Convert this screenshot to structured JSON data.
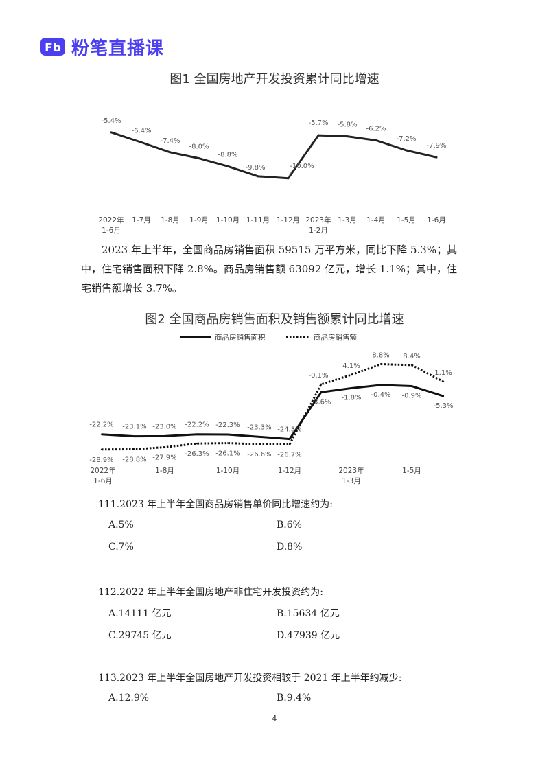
{
  "brand": {
    "mark": "Fb",
    "name": "粉笔直播课",
    "color": "#4b3ff0"
  },
  "chart1": {
    "title": "图1  全国房地产开发投资累计同比增速"
  },
  "paragraph": "2023 年上半年，全国商品房销售面积 59515 万平方米，同比下降 5.3%；其中，住宅销售面积下降 2.8%。商品房销售额 63092 亿元，增长 1.1%；其中，住宅销售额增长 3.7%。",
  "chart2": {
    "title": "图2  全国商品房销售面积及销售额累计同比增速"
  },
  "chart_data": [
    {
      "type": "line",
      "title": "图1  全国房地产开发投资累计同比增速",
      "categories": [
        "2022年 1-6月",
        "1-7月",
        "1-8月",
        "1-9月",
        "1-10月",
        "1-11月",
        "1-12月",
        "2023年 1-2月",
        "1-3月",
        "1-4月",
        "1-5月",
        "1-6月"
      ],
      "series": [
        {
          "values": [
            -5.4,
            -6.4,
            -7.4,
            -8.0,
            -8.8,
            -9.8,
            -10.0,
            -5.7,
            -5.8,
            -6.2,
            -7.2,
            -7.9
          ],
          "labels": [
            "-5.4%",
            "-6.4%",
            "-7.4%",
            "-8.0%",
            "-8.8%",
            "-9.8%",
            "-10.0%",
            "-5.7%",
            "-5.8%",
            "-6.2%",
            "-7.2%",
            "-7.9%"
          ]
        }
      ],
      "ylim": [
        -10.5,
        -5
      ],
      "grid": false,
      "line_color": "#222222"
    },
    {
      "type": "line",
      "title": "图2  全国商品房销售面积及销售额累计同比增速",
      "x_tick_labels": [
        "2022年 1-6月",
        "1-8月",
        "1-10月",
        "1-12月",
        "2023年 1-3月",
        "1-5月"
      ],
      "legend": [
        "商品房销售面积",
        "商品房销售额"
      ],
      "legend_position": "top-center",
      "series": [
        {
          "name": "商品房销售面积",
          "style": "solid",
          "values": [
            -22.2,
            -23.1,
            -23.0,
            -22.2,
            -22.3,
            -23.3,
            -24.3,
            -3.6,
            -1.8,
            -0.4,
            -0.9,
            -5.3
          ],
          "labels": [
            "-22.2%",
            "-23.1%",
            "-23.0%",
            "-22.2%",
            "-22.3%",
            "-23.3%",
            "-24.3%",
            "-3.6%",
            "-1.8%",
            "-0.4%",
            "-0.9%",
            "-5.3%"
          ]
        },
        {
          "name": "商品房销售额",
          "style": "dotted",
          "values": [
            -28.9,
            -28.8,
            -27.9,
            -26.3,
            -26.1,
            -26.6,
            -26.7,
            -0.1,
            4.1,
            8.8,
            8.4,
            1.1
          ],
          "labels": [
            "-28.9%",
            "-28.8%",
            "-27.9%",
            "-26.3%",
            "-26.1%",
            "-26.6%",
            "-26.7%",
            "-0.1%",
            "4.1%",
            "8.8%",
            "8.4%",
            "1.1%"
          ]
        }
      ],
      "ylim": [
        -32,
        12
      ],
      "grid": false
    }
  ],
  "questions": [
    {
      "stem": "111.2023 年上半年全国商品房销售单价同比增速约为:",
      "options": [
        "A.5%",
        "B.6%",
        "C.7%",
        "D.8%"
      ]
    },
    {
      "stem": "112.2022 年上半年全国房地产非住宅开发投资约为:",
      "options": [
        "A.14111 亿元",
        "B.15634 亿元",
        "C.29745 亿元",
        "D.47939 亿元"
      ]
    },
    {
      "stem": "113.2023 年上半年全国房地产开发投资相较于 2021 年上半年约减少:",
      "options": [
        "A.12.9%",
        "B.9.4%"
      ]
    }
  ],
  "page_number": "4"
}
